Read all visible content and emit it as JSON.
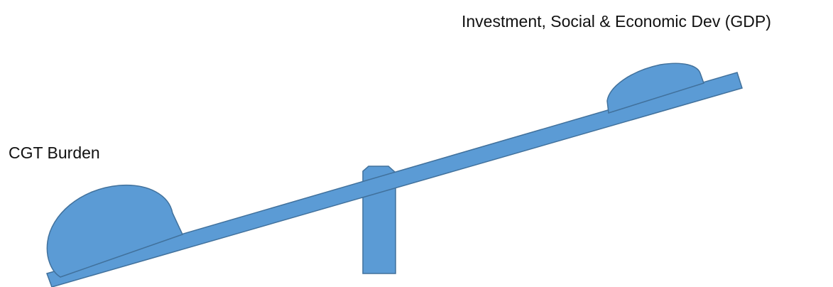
{
  "labels": {
    "right_side": "Investment, Social & Economic Dev (GDP)",
    "left_side": "CGT Burden"
  },
  "colors": {
    "fill": "#5b9bd5",
    "stroke": "#41719c",
    "text": "#111111",
    "background": "#ffffff"
  }
}
